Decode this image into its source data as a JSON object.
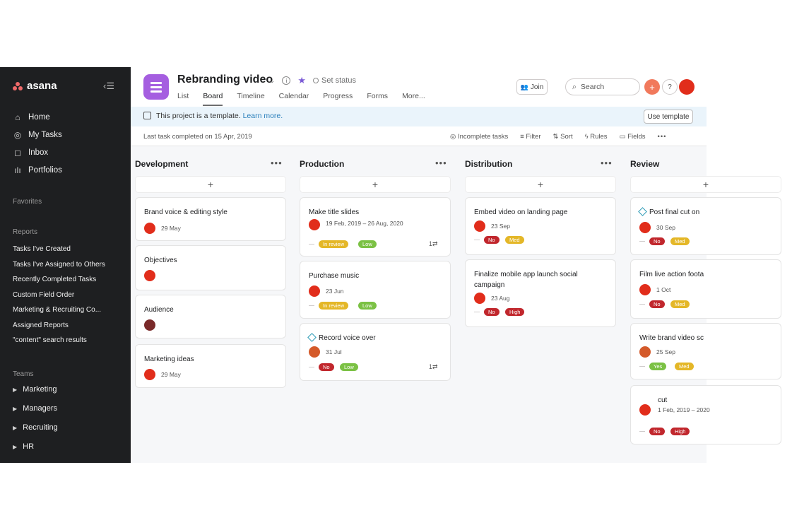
{
  "app": {
    "logo": "asana"
  },
  "sidebar": {
    "nav": [
      {
        "label": "Home",
        "icon": "home-icon"
      },
      {
        "label": "My Tasks",
        "icon": "check-circle-icon"
      },
      {
        "label": "Inbox",
        "icon": "bell-icon"
      },
      {
        "label": "Portfolios",
        "icon": "bar-chart-icon"
      }
    ],
    "favorites_label": "Favorites",
    "reports_label": "Reports",
    "reports": [
      "Tasks I've Created",
      "Tasks I've Assigned to Others",
      "Recently Completed Tasks",
      "Custom Field Order",
      "Marketing & Recruiting Co...",
      "Assigned Reports",
      "\"content\" search results"
    ],
    "teams_label": "Teams",
    "teams": [
      "Marketing",
      "Managers",
      "Recruiting",
      "HR"
    ]
  },
  "header": {
    "title": "Rebranding video",
    "set_status": "Set status",
    "tabs": [
      "List",
      "Board",
      "Timeline",
      "Calendar",
      "Progress",
      "Forms",
      "More..."
    ],
    "active_tab": "Board",
    "join": "Join",
    "search_placeholder": "Search",
    "help": "?",
    "plus": "+"
  },
  "banner": {
    "text": "This project is a template.",
    "link": "Learn more.",
    "button": "Use template"
  },
  "toolbar": {
    "last_completed": "Last task completed on 15 Apr, 2019",
    "incomplete": "Incomplete tasks",
    "filter": "Filter",
    "sort": "Sort",
    "rules": "Rules",
    "fields": "Fields"
  },
  "board": {
    "columns": [
      {
        "name": "Development",
        "cards": [
          {
            "title": "Brand voice & editing style",
            "due": "29 May"
          },
          {
            "title": "Objectives"
          },
          {
            "title": "Audience"
          },
          {
            "title": "Marketing ideas",
            "due": "29 May"
          }
        ]
      },
      {
        "name": "Production",
        "cards": [
          {
            "title": "Make title slides",
            "due": "19 Feb, 2019 – 26 Aug, 2020",
            "tags": [
              "In review",
              "Low"
            ],
            "subtasks": "1"
          },
          {
            "title": "Purchase music",
            "due": "23 Jun",
            "tags": [
              "In review",
              "Low"
            ]
          },
          {
            "title": "Record voice over",
            "due": "31 Jul",
            "tags": [
              "No",
              "Low"
            ],
            "subtasks": "1"
          }
        ]
      },
      {
        "name": "Distribution",
        "cards": [
          {
            "title": "Embed video on landing page",
            "due": "23 Sep",
            "tags": [
              "No",
              "Med"
            ]
          },
          {
            "title": "Finalize mobile app launch social campaign",
            "due": "23 Aug",
            "tags": [
              "No",
              "High"
            ]
          }
        ]
      },
      {
        "name": "Review",
        "cards": [
          {
            "title": "Post final cut on",
            "due": "30 Sep",
            "tags": [
              "No",
              "Med"
            ]
          },
          {
            "title": "Film live action foota",
            "due": "1 Oct",
            "tags": [
              "No",
              "Med"
            ]
          },
          {
            "title": "Write brand video sc",
            "due": "25 Sep",
            "tags": [
              "Yes",
              "Med"
            ]
          },
          {
            "title": "cut",
            "due": "1 Feb, 2019 – 2020",
            "tags": [
              "No",
              "High"
            ]
          }
        ]
      }
    ]
  },
  "colors": {
    "sidebar_bg": "#1e1f21",
    "project_icon": "#a55ee0",
    "banner_bg": "#eaf4fb",
    "tag_red": "#c1272d",
    "tag_yellow": "#e4b728",
    "tag_green": "#7bc144"
  }
}
